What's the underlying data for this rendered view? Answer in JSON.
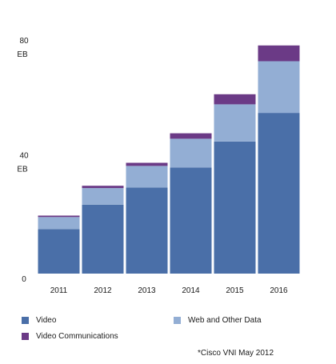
{
  "chart_data": {
    "type": "bar",
    "stacked": true,
    "title": "",
    "xlabel": "",
    "ylabel": "",
    "categories": [
      "2011",
      "2012",
      "2013",
      "2014",
      "2015",
      "2016"
    ],
    "series": [
      {
        "name": "Video",
        "color": "#4a6fa8",
        "values": [
          15.5,
          24.0,
          30.0,
          37.0,
          46.0,
          56.0
        ]
      },
      {
        "name": "Web and Other Data",
        "color": "#93aed4",
        "values": [
          4.2,
          5.8,
          7.5,
          10.0,
          13.0,
          18.0
        ]
      },
      {
        "name": "Video Communications",
        "color": "#6b3a86",
        "values": [
          0.5,
          0.8,
          1.1,
          1.9,
          3.5,
          5.5
        ]
      }
    ],
    "ylim": [
      0,
      80
    ],
    "yticks": [
      {
        "value": 80,
        "label": "80",
        "unit": "EB"
      },
      {
        "value": 40,
        "label": "40",
        "unit": "EB"
      },
      {
        "value": 0,
        "label": "0",
        "unit": ""
      }
    ],
    "grid": false,
    "legend_position": "bottom",
    "source": "*Cisco VNI May 2012"
  }
}
